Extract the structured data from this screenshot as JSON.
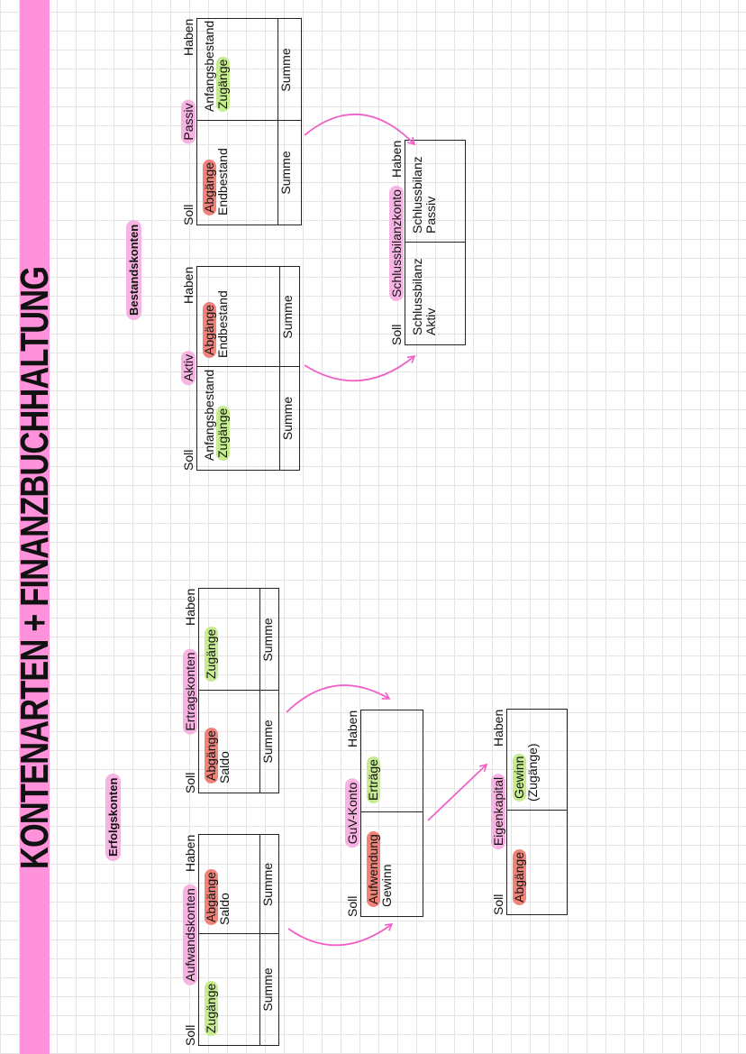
{
  "title": "KONTENARTEN + FINANZBUCHHALTUNG",
  "colors": {
    "stripe": "#ff92da",
    "title_pill": "#f7b4e3",
    "zugang": "#c6ec8f",
    "abgang": "#f08379",
    "arrow": "#f060c8"
  },
  "sections": {
    "erfolg": "Erfolgskonten",
    "bestand": "Bestandskonten"
  },
  "accounts": [
    {
      "id": "aufwand",
      "title": "Aufwandskonten",
      "soll": "Soll",
      "haben": "Haben",
      "soll_items": [
        {
          "text": "Zugänge",
          "hl": "zugang"
        }
      ],
      "haben_items": [
        {
          "text": "Abgänge",
          "hl": "abgang"
        },
        {
          "text": "Saldo",
          "hl": ""
        }
      ],
      "soll_sum": "Summe",
      "haben_sum": "Summe"
    },
    {
      "id": "ertrag",
      "title": "Ertragskonten",
      "soll": "Soll",
      "haben": "Haben",
      "soll_items": [
        {
          "text": "Abgänge",
          "hl": "abgang"
        },
        {
          "text": "Saldo",
          "hl": ""
        }
      ],
      "haben_items": [
        {
          "text": "Zugänge",
          "hl": "zugang"
        }
      ],
      "soll_sum": "Summe",
      "haben_sum": "Summe"
    },
    {
      "id": "guv",
      "title": "GuV-Konto",
      "soll": "Soll",
      "haben": "Haben",
      "soll_items": [
        {
          "text": "Aufwendung",
          "hl": "abgang"
        },
        {
          "text": "Gewinn",
          "hl": ""
        }
      ],
      "haben_items": [
        {
          "text": "Erträge",
          "hl": "zugang"
        }
      ]
    },
    {
      "id": "eigen",
      "title": "Eigenkapital",
      "soll": "Soll",
      "haben": "Haben",
      "soll_items": [
        {
          "text": "Abgänge",
          "hl": "abgang"
        }
      ],
      "haben_items": [
        {
          "text": "Gewinn",
          "hl": "zugang"
        },
        {
          "text": "(Zugänge)",
          "hl": ""
        }
      ]
    },
    {
      "id": "aktiv",
      "title": "Aktiv",
      "soll": "Soll",
      "haben": "Haben",
      "soll_items": [
        {
          "text": "Anfangsbestand",
          "hl": ""
        },
        {
          "text": "Zugänge",
          "hl": "zugang"
        }
      ],
      "haben_items": [
        {
          "text": "Abgänge",
          "hl": "abgang"
        },
        {
          "text": "Endbestand",
          "hl": ""
        }
      ],
      "soll_sum": "Summe",
      "haben_sum": "Summe"
    },
    {
      "id": "passiv",
      "title": "Passiv",
      "soll": "Soll",
      "haben": "Haben",
      "soll_items": [
        {
          "text": "Abgänge",
          "hl": "abgang"
        },
        {
          "text": "Endbestand",
          "hl": ""
        }
      ],
      "haben_items": [
        {
          "text": "Anfangsbestand",
          "hl": ""
        },
        {
          "text": "Zugänge",
          "hl": "zugang"
        }
      ],
      "soll_sum": "Summe",
      "haben_sum": "Summe"
    },
    {
      "id": "schluss",
      "title": "Schlussbilanzkonto",
      "soll": "Soll",
      "haben": "Haben",
      "soll_items": [
        {
          "text": "Schlussbilanz",
          "hl": ""
        },
        {
          "text": "Aktiv",
          "hl": ""
        }
      ],
      "haben_items": [
        {
          "text": "Schlussbilanz",
          "hl": ""
        },
        {
          "text": "Passiv",
          "hl": ""
        }
      ]
    }
  ]
}
